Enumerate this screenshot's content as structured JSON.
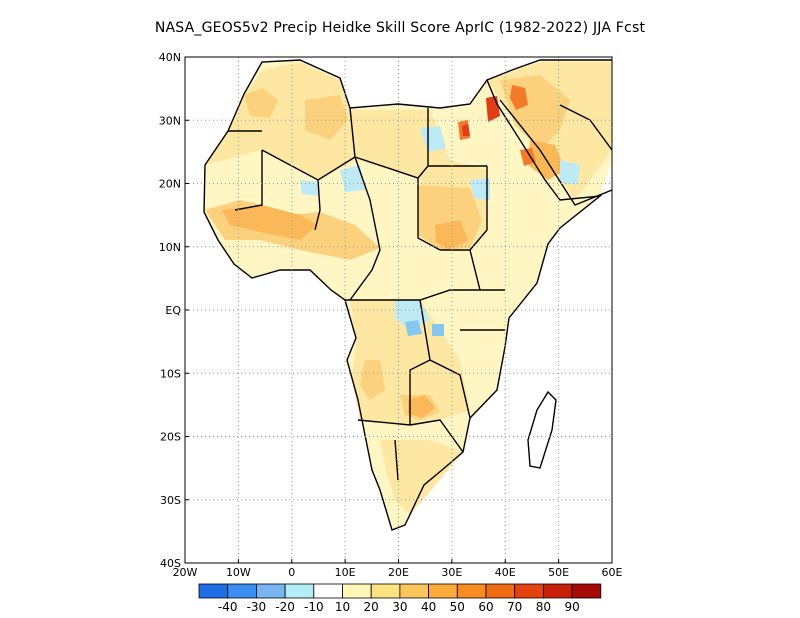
{
  "title": "NASA_GEOS5v2 Precip Heidke Skill Score AprIC (1982-2022) JJA Fcst",
  "map": {
    "lon_range": [
      -20,
      60
    ],
    "lat_range": [
      -40,
      40
    ],
    "gridlines": true,
    "lon_ticks": [
      {
        "value": -20,
        "label": "20W"
      },
      {
        "value": -10,
        "label": "10W"
      },
      {
        "value": 0,
        "label": "0"
      },
      {
        "value": 10,
        "label": "10E"
      },
      {
        "value": 20,
        "label": "20E"
      },
      {
        "value": 30,
        "label": "30E"
      },
      {
        "value": 40,
        "label": "40E"
      },
      {
        "value": 50,
        "label": "50E"
      },
      {
        "value": 60,
        "label": "60E"
      }
    ],
    "lat_ticks": [
      {
        "value": 40,
        "label": "40N"
      },
      {
        "value": 30,
        "label": "30N"
      },
      {
        "value": 20,
        "label": "20N"
      },
      {
        "value": 10,
        "label": "10N"
      },
      {
        "value": 0,
        "label": "EQ"
      },
      {
        "value": -10,
        "label": "10S"
      },
      {
        "value": -20,
        "label": "20S"
      },
      {
        "value": -30,
        "label": "30S"
      },
      {
        "value": -40,
        "label": "40S"
      }
    ],
    "colors": {
      "land_base": "#fff6c4",
      "skill_10_20": "#fde7a3",
      "skill_20_30": "#fcd17d",
      "skill_30_40": "#fbb858",
      "skill_50_60": "#f27a28",
      "skill_60_80": "#de3d15",
      "skill_neg_10_20": "#bdeaf5",
      "skill_neg_20_30": "#85c7ee",
      "coast": "#000000"
    }
  },
  "colorbar": {
    "colors": [
      "#1e6ee8",
      "#3c8ff0",
      "#78b6f2",
      "#b3eef8",
      "#ffffff",
      "#fff6b8",
      "#fde282",
      "#fcc55b",
      "#fbaa3c",
      "#f98c20",
      "#f06d14",
      "#e4430e",
      "#c92109",
      "#a80a05"
    ],
    "labels": [
      "-40",
      "-30",
      "-20",
      "-10",
      "10",
      "20",
      "30",
      "40",
      "50",
      "60",
      "70",
      "80",
      "90"
    ]
  }
}
